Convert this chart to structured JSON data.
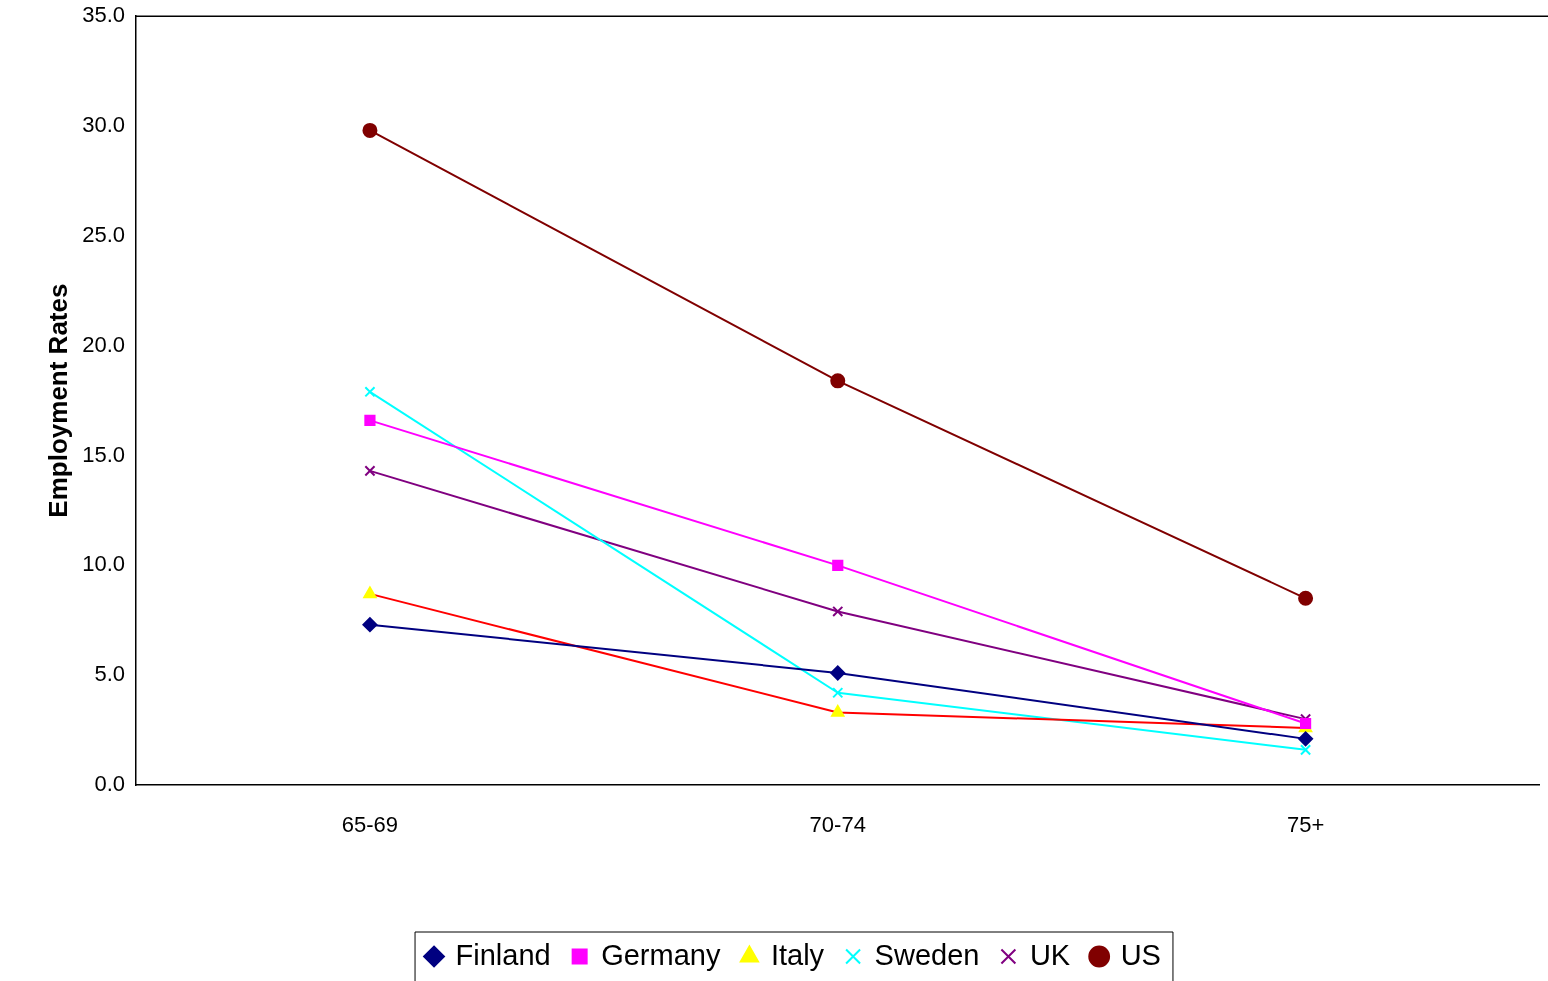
{
  "chart_data": {
    "type": "line",
    "ylabel": "Employment Rates",
    "categories": [
      "65-69",
      "70-74",
      "75+"
    ],
    "series": [
      {
        "name": "Finland",
        "color": "#000080",
        "marker": "diamond",
        "values": [
          7.3,
          5.1,
          2.1
        ]
      },
      {
        "name": "Germany",
        "color": "#ff00ff",
        "marker": "square",
        "values": [
          16.6,
          10.0,
          2.8
        ]
      },
      {
        "name": "Italy",
        "color": "#ff0000",
        "marker": "triangle",
        "colors": [
          "#ffff00",
          "#ffff00",
          "#ffff00"
        ],
        "values": [
          8.7,
          3.3,
          2.6
        ]
      },
      {
        "name": "Sweden",
        "color": "#00ffff",
        "marker": "cross",
        "values": [
          17.9,
          4.2,
          1.6
        ]
      },
      {
        "name": "UK",
        "color": "#800080",
        "marker": "cross",
        "values": [
          14.3,
          7.9,
          3.0
        ]
      },
      {
        "name": "US",
        "color": "#800000",
        "marker": "circle",
        "values": [
          29.8,
          18.4,
          8.5
        ]
      }
    ],
    "ylim": [
      0,
      35
    ],
    "yticks": [
      {
        "value": 0,
        "label": "0.0"
      },
      {
        "value": 5,
        "label": "5.0"
      },
      {
        "value": 10,
        "label": "10.0"
      },
      {
        "value": 15,
        "label": "15.0"
      },
      {
        "value": 20,
        "label": "20.0"
      },
      {
        "value": 25,
        "label": "25.0"
      },
      {
        "value": 30,
        "label": "30.0"
      },
      {
        "value": 35,
        "label": "35.0"
      }
    ],
    "grid": false,
    "legend": "bottom",
    "line_style": "solid"
  }
}
